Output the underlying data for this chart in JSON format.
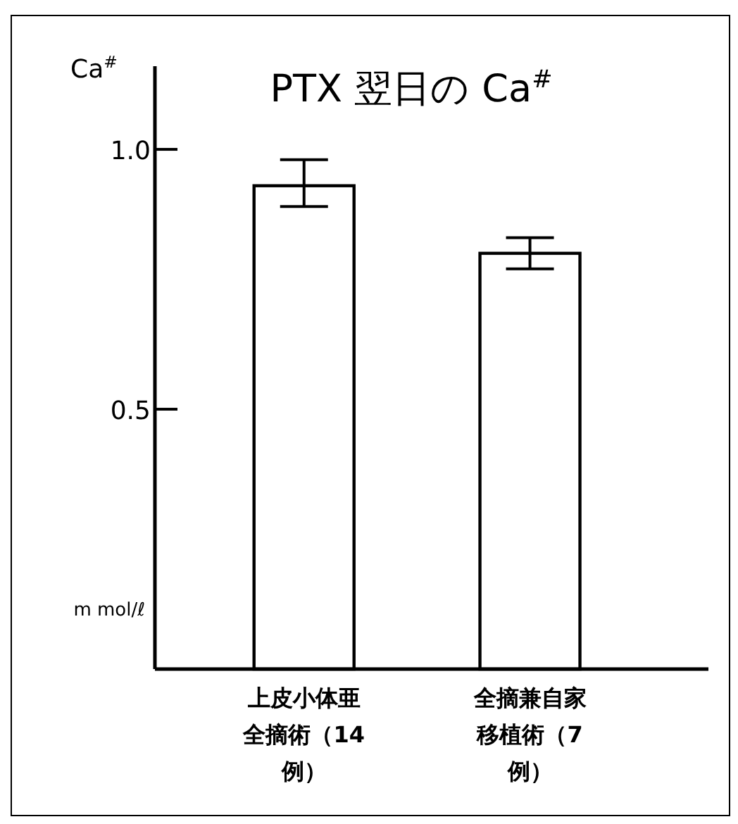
{
  "chart_data": {
    "type": "bar",
    "title": "PTX 翌日の Ca$^{#}$",
    "ylabel": "Ca$^{#}$",
    "annotations": [
      "m mol/ℓ"
    ],
    "categories": [
      "上皮小体亜全摘術（14例）",
      "全摘兼自家移植術（7例）"
    ],
    "values": [
      0.93,
      0.8
    ],
    "errors": [
      [
        0.89,
        0.98
      ],
      [
        0.77,
        0.83
      ]
    ],
    "color": "#ffffff",
    "ylim": [
      0,
      1.16
    ],
    "yticks": [
      {
        "value": 0.5,
        "label": "0.5"
      },
      {
        "value": 1.0,
        "label": "1.0"
      }
    ]
  }
}
